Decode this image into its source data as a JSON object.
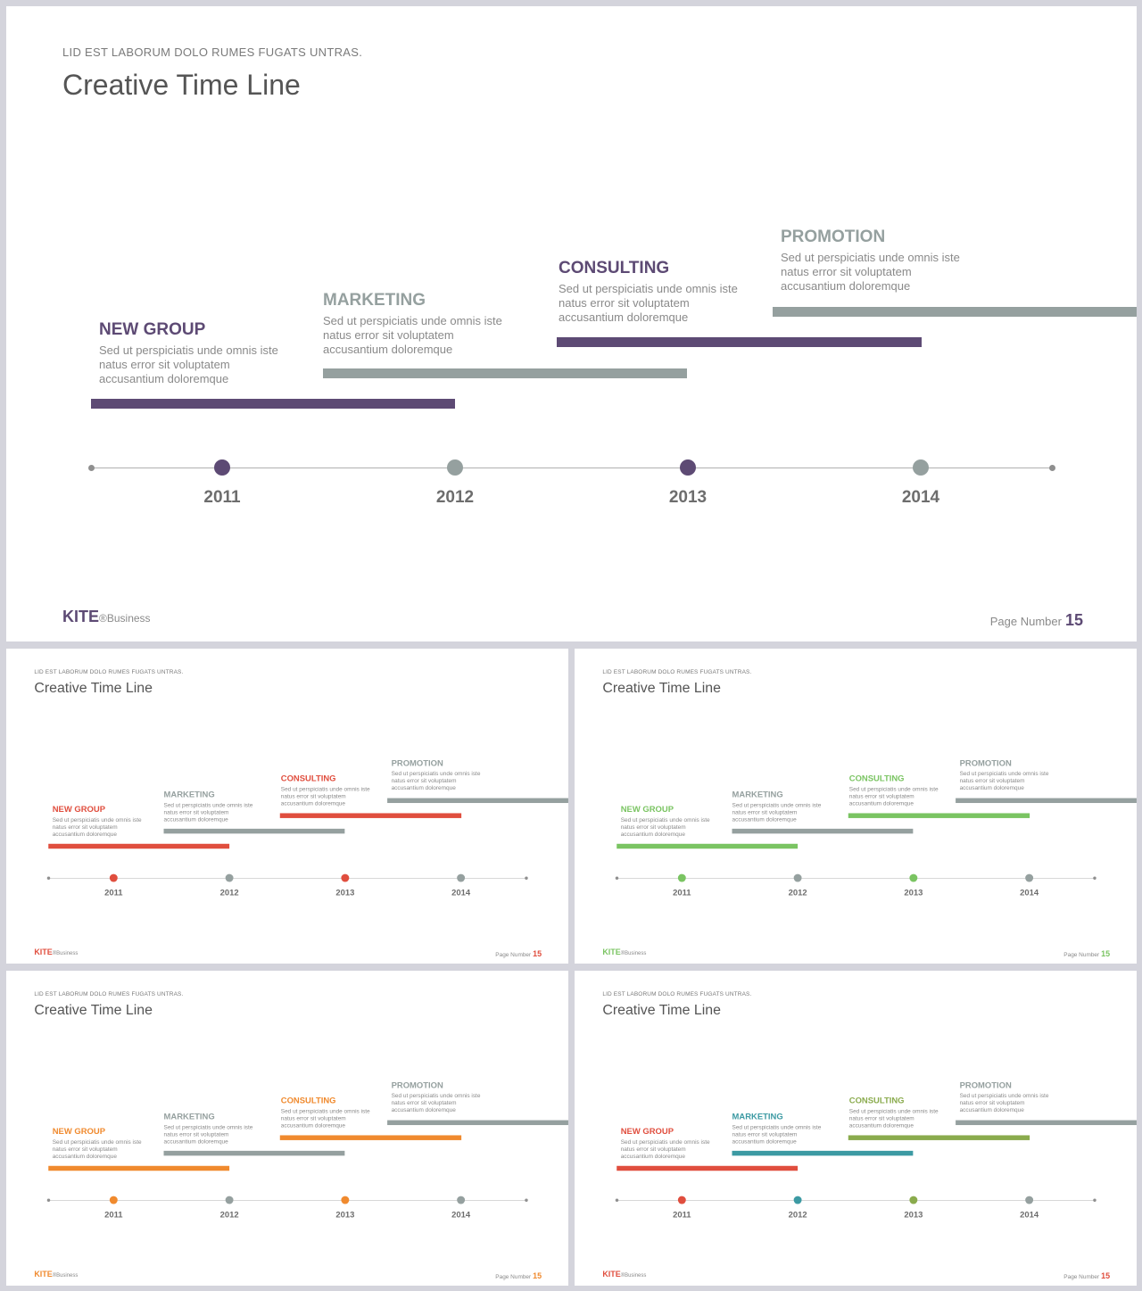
{
  "subtitle": "LID EST LABORUM DOLO RUMES FUGATS UNTRAS.",
  "title": "Creative Time Line",
  "description_lines": [
    "Sed ut perspiciatis  unde omnis iste",
    "natus error  sit voluptatem",
    "accusantium  doloremque"
  ],
  "steps": [
    {
      "label": "NEW GROUP"
    },
    {
      "label": "MARKETING"
    },
    {
      "label": "CONSULTING"
    },
    {
      "label": "PROMOTION"
    }
  ],
  "years": [
    "2011",
    "2012",
    "2013",
    "2014"
  ],
  "brand": {
    "name": "KITE",
    "suffix": "®Business"
  },
  "page": {
    "label": "Page  Number",
    "number": "15"
  },
  "neutral_color": "#95a09f",
  "slides": [
    {
      "id": "purple",
      "colors": [
        "#5d4a74",
        "#95a09f",
        "#5d4a74",
        "#95a09f"
      ],
      "dot_colors": [
        "#5d4a74",
        "#95a09f",
        "#5d4a74",
        "#95a09f"
      ],
      "label_colors": [
        "#5d4a74",
        "#95a09f",
        "#5d4a74",
        "#95a09f"
      ],
      "brand_color": "#5d4a74"
    },
    {
      "id": "red",
      "colors": [
        "#e04e3e",
        "#95a09f",
        "#e04e3e",
        "#95a09f"
      ],
      "dot_colors": [
        "#e04e3e",
        "#95a09f",
        "#e04e3e",
        "#95a09f"
      ],
      "label_colors": [
        "#e04e3e",
        "#95a09f",
        "#e04e3e",
        "#95a09f"
      ],
      "brand_color": "#e04e3e"
    },
    {
      "id": "green",
      "colors": [
        "#7ac462",
        "#95a09f",
        "#7ac462",
        "#95a09f"
      ],
      "dot_colors": [
        "#7ac462",
        "#95a09f",
        "#7ac462",
        "#95a09f"
      ],
      "label_colors": [
        "#7ac462",
        "#95a09f",
        "#7ac462",
        "#95a09f"
      ],
      "brand_color": "#7ac462"
    },
    {
      "id": "orange",
      "colors": [
        "#f08a2e",
        "#95a09f",
        "#f08a2e",
        "#95a09f"
      ],
      "dot_colors": [
        "#f08a2e",
        "#95a09f",
        "#f08a2e",
        "#95a09f"
      ],
      "label_colors": [
        "#f08a2e",
        "#95a09f",
        "#f08a2e",
        "#95a09f"
      ],
      "brand_color": "#f08a2e"
    },
    {
      "id": "multi",
      "colors": [
        "#e04e3e",
        "#3c9aa3",
        "#8aab4d",
        "#95a09f"
      ],
      "dot_colors": [
        "#e04e3e",
        "#3c9aa3",
        "#8aab4d",
        "#95a09f"
      ],
      "label_colors": [
        "#e04e3e",
        "#3c9aa3",
        "#8aab4d",
        "#95a09f"
      ],
      "brand_color": "#e04e3e"
    }
  ]
}
